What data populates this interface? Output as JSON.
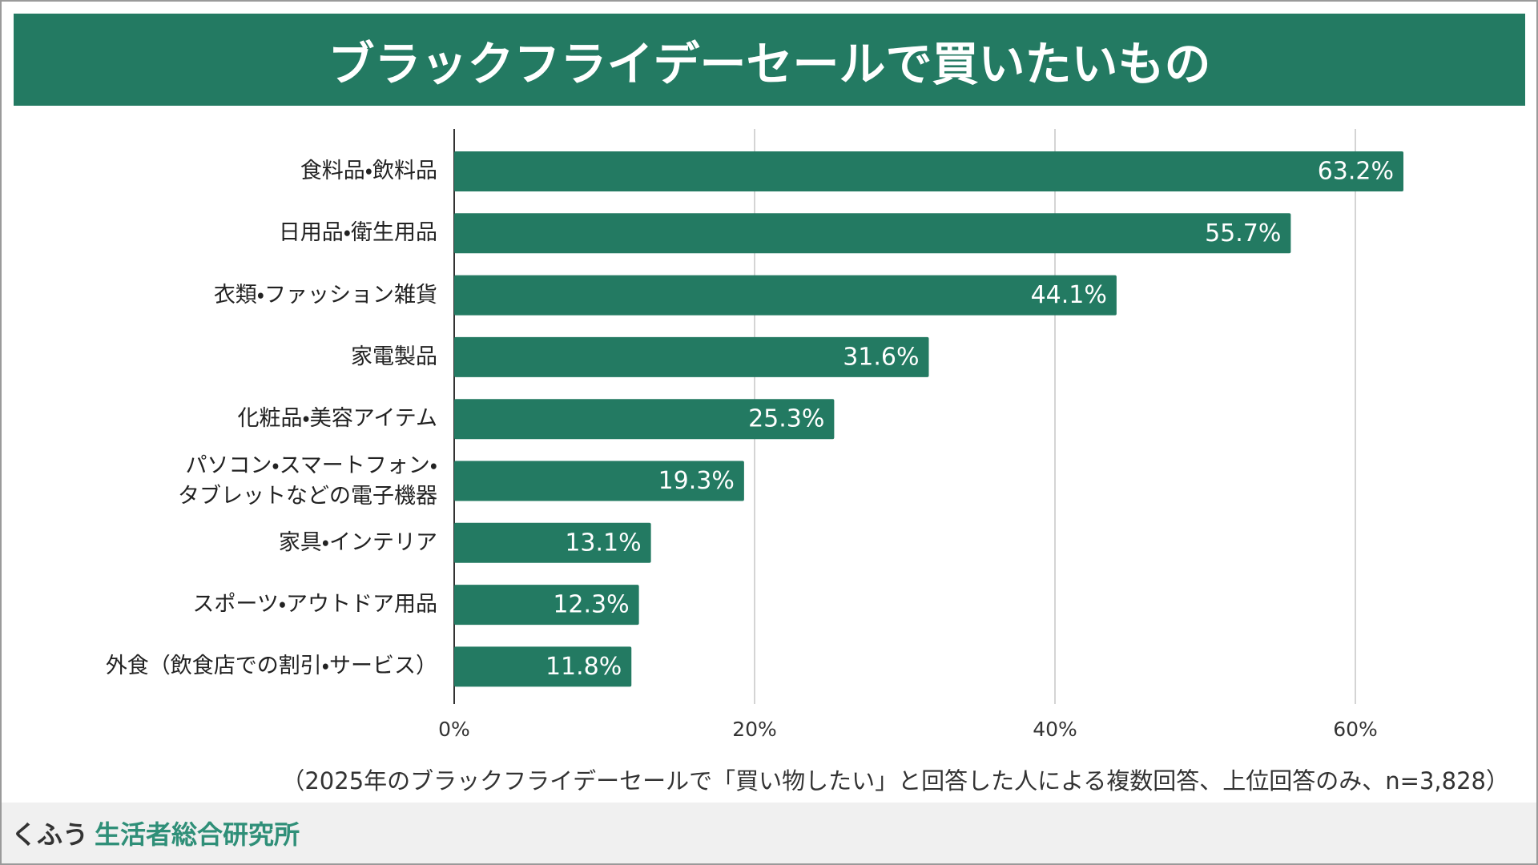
{
  "chart_data": {
    "type": "barh",
    "title": "ブラックフライデーセールで買いたいもの",
    "categories": [
      "食料品・飲料品",
      "日用品・衛生用品",
      "衣類・ファッション雑貨",
      "家電製品",
      "化粧品・美容アイテム",
      "パソコン・スマートフォン・\nタブレットなどの電子機器",
      "家具・インテリア",
      "スポーツ・アウトドア用品",
      "外食（飲食店での割引・サービス）"
    ],
    "values": [
      63.2,
      55.7,
      44.1,
      31.6,
      25.3,
      19.3,
      13.1,
      12.3,
      11.8
    ],
    "value_labels": [
      "63.2%",
      "55.7%",
      "44.1%",
      "31.6%",
      "25.3%",
      "19.3%",
      "13.1%",
      "12.3%",
      "11.8%"
    ],
    "color": "#237a62",
    "xlim": [
      0,
      70
    ],
    "xticks": [
      {
        "value": 0,
        "label": "0%"
      },
      {
        "value": 20,
        "label": "20%"
      },
      {
        "value": 40,
        "label": "40%"
      },
      {
        "value": 60,
        "label": "60%"
      }
    ],
    "grid": true,
    "note": "（2025年のブラックフライデーセールで「買い物したい」と回答した人による複数回答、上位回答のみ、n=3,828）"
  },
  "footer": {
    "brand": "くふう",
    "org": "生活者総合研究所"
  }
}
